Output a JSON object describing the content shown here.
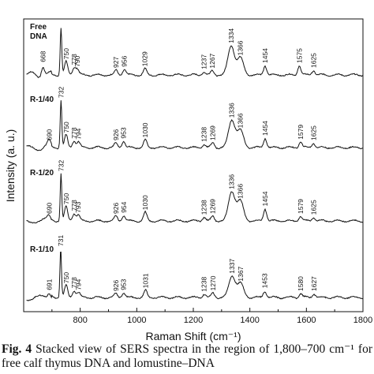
{
  "chart_data": {
    "type": "line",
    "xlabel": "Raman Shift (cm⁻¹)",
    "ylabel": "Intensity (a. u.)",
    "xlim": [
      600,
      1800
    ],
    "xticks": [
      800,
      1000,
      1200,
      1400,
      1600,
      1800
    ],
    "stacked": true,
    "grid": false,
    "series": [
      {
        "name": "Free DNA",
        "line1": "Free",
        "line2": "DNA",
        "peaks": [
          {
            "x": 668,
            "label": "668",
            "h": 0.22
          },
          {
            "x": 732,
            "label": "",
            "h": 1.0
          },
          {
            "x": 750,
            "label": "750",
            "h": 0.28
          },
          {
            "x": 778,
            "label": "778",
            "h": 0.16
          },
          {
            "x": 790,
            "label": "790",
            "h": 0.12
          },
          {
            "x": 927,
            "label": "927",
            "h": 0.1
          },
          {
            "x": 956,
            "label": "956",
            "h": 0.12
          },
          {
            "x": 1029,
            "label": "1029",
            "h": 0.13
          },
          {
            "x": 1237,
            "label": "1237",
            "h": 0.07
          },
          {
            "x": 1267,
            "label": "1267",
            "h": 0.09
          },
          {
            "x": 1334,
            "label": "1334",
            "h": 0.62
          },
          {
            "x": 1366,
            "label": "1366",
            "h": 0.36
          },
          {
            "x": 1454,
            "label": "1454",
            "h": 0.2
          },
          {
            "x": 1575,
            "label": "1575",
            "h": 0.2
          },
          {
            "x": 1625,
            "label": "1625",
            "h": 0.1
          }
        ]
      },
      {
        "name": "R-1/40",
        "line1": "R-1/40",
        "line2": "",
        "peaks": [
          {
            "x": 690,
            "label": "690",
            "h": 0.1
          },
          {
            "x": 732,
            "label": "732",
            "h": 1.0
          },
          {
            "x": 750,
            "label": "750",
            "h": 0.26
          },
          {
            "x": 778,
            "label": "778",
            "h": 0.14
          },
          {
            "x": 794,
            "label": "794",
            "h": 0.12
          },
          {
            "x": 926,
            "label": "926",
            "h": 0.1
          },
          {
            "x": 953,
            "label": "953",
            "h": 0.14
          },
          {
            "x": 1030,
            "label": "1030",
            "h": 0.16
          },
          {
            "x": 1238,
            "label": "1238",
            "h": 0.07
          },
          {
            "x": 1269,
            "label": "1269",
            "h": 0.1
          },
          {
            "x": 1336,
            "label": "1336",
            "h": 0.58
          },
          {
            "x": 1366,
            "label": "1366",
            "h": 0.36
          },
          {
            "x": 1454,
            "label": "1454",
            "h": 0.2
          },
          {
            "x": 1579,
            "label": "1579",
            "h": 0.12
          },
          {
            "x": 1625,
            "label": "1625",
            "h": 0.1
          }
        ]
      },
      {
        "name": "R-1/20",
        "line1": "R-1/20",
        "line2": "",
        "peaks": [
          {
            "x": 690,
            "label": "690",
            "h": 0.1
          },
          {
            "x": 732,
            "label": "732",
            "h": 1.0
          },
          {
            "x": 750,
            "label": "750",
            "h": 0.3
          },
          {
            "x": 778,
            "label": "778",
            "h": 0.16
          },
          {
            "x": 793,
            "label": "793",
            "h": 0.12
          },
          {
            "x": 926,
            "label": "926",
            "h": 0.1
          },
          {
            "x": 954,
            "label": "954",
            "h": 0.12
          },
          {
            "x": 1030,
            "label": "1030",
            "h": 0.18
          },
          {
            "x": 1238,
            "label": "1238",
            "h": 0.08
          },
          {
            "x": 1269,
            "label": "1269",
            "h": 0.1
          },
          {
            "x": 1336,
            "label": "1336",
            "h": 0.62
          },
          {
            "x": 1366,
            "label": "1366",
            "h": 0.42
          },
          {
            "x": 1454,
            "label": "1454",
            "h": 0.26
          },
          {
            "x": 1579,
            "label": "1579",
            "h": 0.1
          },
          {
            "x": 1625,
            "label": "1625",
            "h": 0.08
          }
        ]
      },
      {
        "name": "R-1/10",
        "line1": "R-1/10",
        "line2": "",
        "peaks": [
          {
            "x": 691,
            "label": "691",
            "h": 0.1
          },
          {
            "x": 731,
            "label": "731",
            "h": 1.0
          },
          {
            "x": 750,
            "label": "750",
            "h": 0.24
          },
          {
            "x": 778,
            "label": "778",
            "h": 0.14
          },
          {
            "x": 794,
            "label": "794",
            "h": 0.1
          },
          {
            "x": 926,
            "label": "926",
            "h": 0.08
          },
          {
            "x": 953,
            "label": "953",
            "h": 0.1
          },
          {
            "x": 1031,
            "label": "1031",
            "h": 0.14
          },
          {
            "x": 1238,
            "label": "1238",
            "h": 0.07
          },
          {
            "x": 1270,
            "label": "1270",
            "h": 0.09
          },
          {
            "x": 1337,
            "label": "1337",
            "h": 0.44
          },
          {
            "x": 1367,
            "label": "1367",
            "h": 0.28
          },
          {
            "x": 1453,
            "label": "1453",
            "h": 0.14
          },
          {
            "x": 1580,
            "label": "1580",
            "h": 0.08
          },
          {
            "x": 1627,
            "label": "1627",
            "h": 0.08
          }
        ]
      }
    ]
  },
  "caption": {
    "fig_label": "Fig. 4",
    "text": " Stacked view of SERS spectra in the region of 1,800–700 cm⁻¹ for free calf thymus DNA and lomustine–DNA"
  }
}
